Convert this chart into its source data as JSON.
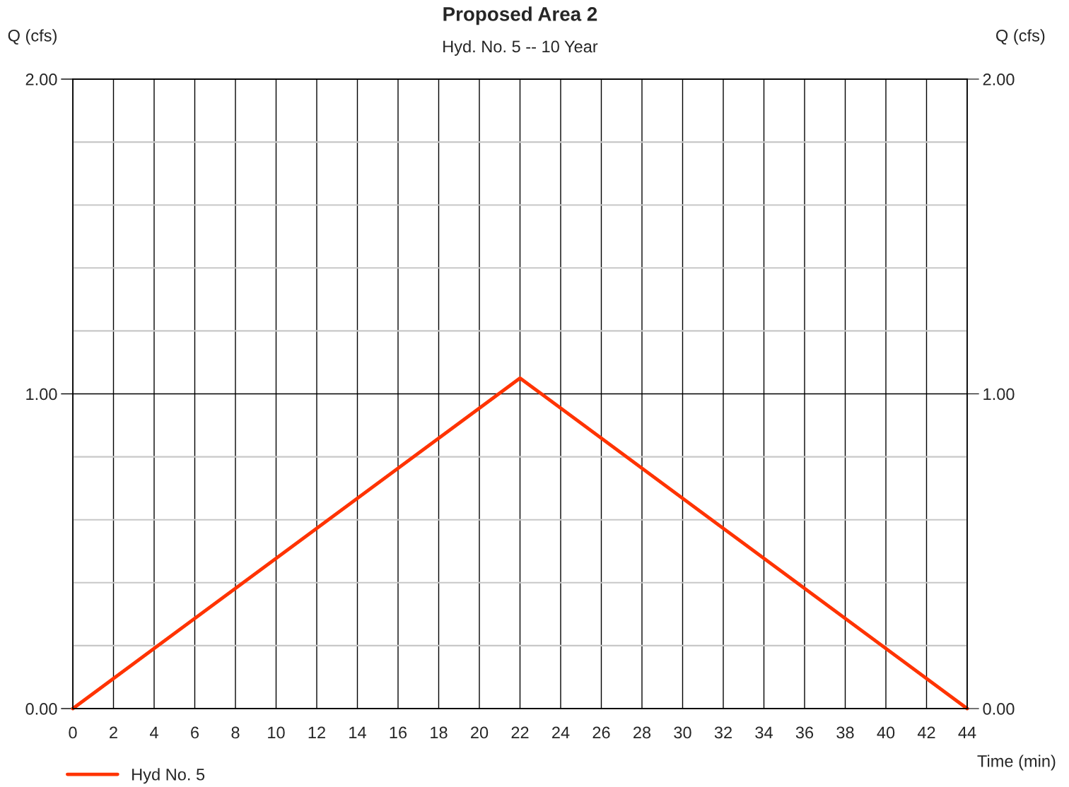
{
  "chart_data": {
    "type": "line",
    "title": "Proposed Area 2",
    "subtitle": "Hyd. No. 5 -- 10 Year",
    "xlabel": "Time (min)",
    "ylabel": "Q (cfs)",
    "y2label": "Q (cfs)",
    "x": [
      0,
      22,
      44
    ],
    "series": [
      {
        "name": "Hyd No. 5",
        "color": "#ff3300",
        "values": [
          0,
          1.05,
          0
        ]
      }
    ],
    "xlim": [
      0,
      44
    ],
    "xticks": [
      0,
      2,
      4,
      6,
      8,
      10,
      12,
      14,
      16,
      18,
      20,
      22,
      24,
      26,
      28,
      30,
      32,
      34,
      36,
      38,
      40,
      42,
      44
    ],
    "ylim": [
      0,
      2
    ],
    "yticks": [
      {
        "value": 0,
        "label": "0.00"
      },
      {
        "value": 0.2,
        "label": null
      },
      {
        "value": 0.4,
        "label": null
      },
      {
        "value": 0.6,
        "label": null
      },
      {
        "value": 0.8,
        "label": null
      },
      {
        "value": 1,
        "label": "1.00"
      },
      {
        "value": 1.2,
        "label": null
      },
      {
        "value": 1.4,
        "label": null
      },
      {
        "value": 1.6,
        "label": null
      },
      {
        "value": 1.8,
        "label": null
      },
      {
        "value": 2,
        "label": "2.00"
      }
    ],
    "y2lim": [
      0,
      2
    ],
    "y2ticks": [
      {
        "value": 0,
        "label": "0.00"
      },
      {
        "value": 1,
        "label": "1.00"
      },
      {
        "value": 2,
        "label": "2.00"
      }
    ],
    "grid": true,
    "legend": "bottom left",
    "marker": "none",
    "line_style": "solid"
  }
}
